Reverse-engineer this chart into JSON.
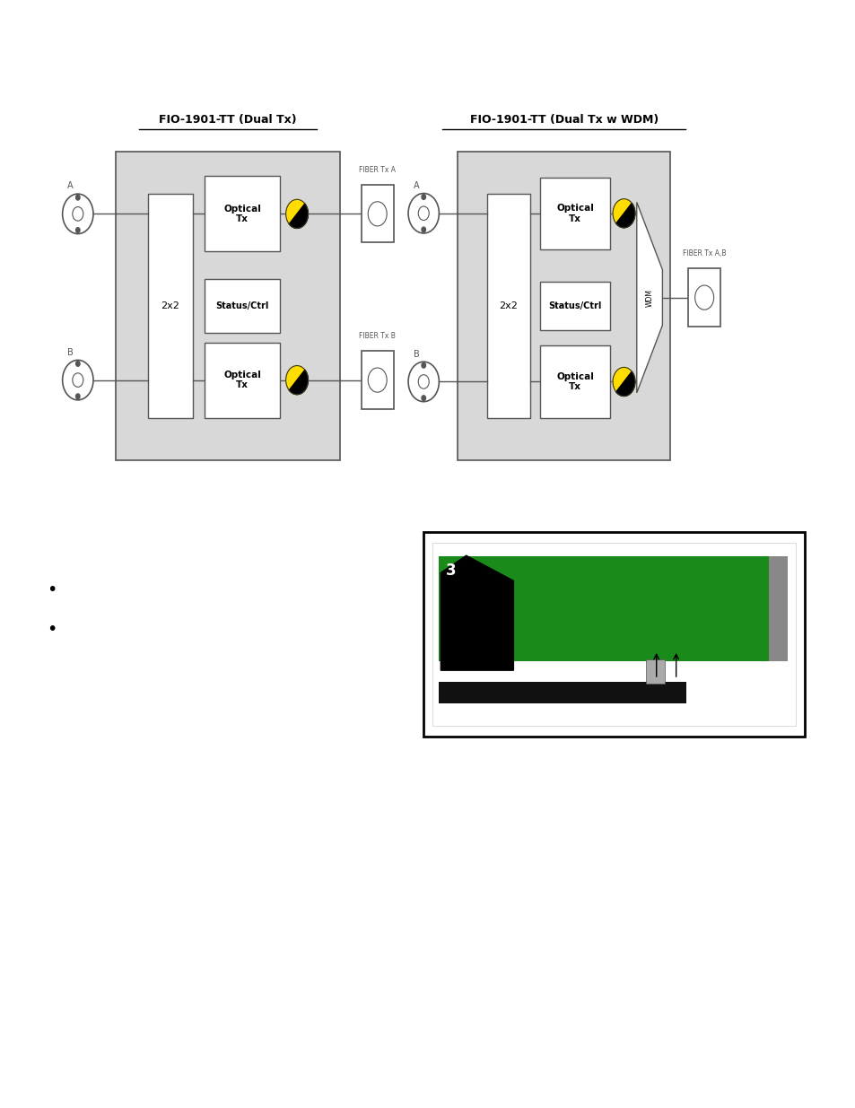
{
  "bg_color": "#ffffff",
  "diagram1_title": "FIO-1901-TT (Dual Tx)",
  "diagram2_title": "FIO-1901-TT (Dual Tx w WDM)",
  "box_color": "#d8d8d8",
  "inner_box_color": "#ffffff",
  "yellow_color": "#ffdd00",
  "line_color": "#555555",
  "fiber_label_A": "FIBER Tx A",
  "fiber_label_B": "FIBER Tx B",
  "fiber_label_AB": "FIBER Tx A,B",
  "label_A": "A",
  "label_B": "B",
  "label_2x2": "2x2",
  "label_optical_tx": [
    "Optical",
    "Tx"
  ],
  "label_status": [
    "Status/Ctrl"
  ],
  "label_wdm": "WDM"
}
